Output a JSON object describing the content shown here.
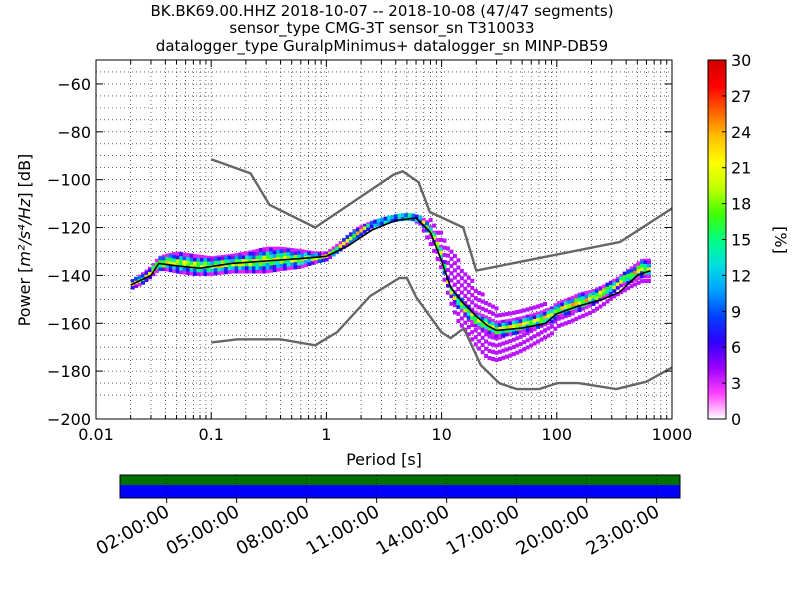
{
  "title": {
    "line1": "BK.BK69.00.HHZ   2018-10-07 -- 2018-10-08  (47/47 segments)",
    "line2": "sensor_type CMG-3T sensor_sn T310033",
    "line3": "datalogger_type GuralpMinimus+ datalogger_sn MINP-DB59"
  },
  "chart_data": [
    {
      "type": "heatmap",
      "xlabel": "Period [s]",
      "ylabel_prefix": "Power [",
      "ylabel_math": "m²/s⁴/Hz",
      "ylabel_suffix": "] [dB]",
      "x_scale": "log",
      "xlim": [
        0.01,
        1000
      ],
      "ylim": [
        -200,
        -50
      ],
      "x_ticks": [
        0.01,
        0.1,
        1,
        10,
        100,
        1000
      ],
      "x_tick_labels": [
        "0.01",
        "0.1",
        "1",
        "10",
        "100",
        "1000"
      ],
      "y_ticks": [
        -200,
        -180,
        -160,
        -140,
        -120,
        -100,
        -80,
        -60
      ],
      "y_tick_labels": [
        "−200",
        "−180",
        "−160",
        "−140",
        "−120",
        "−100",
        "−80",
        "−60"
      ],
      "grid": true,
      "colorbar": {
        "label": "[%]",
        "range": [
          0,
          30
        ],
        "ticks": [
          0,
          3,
          6,
          9,
          12,
          15,
          18,
          21,
          24,
          27,
          30
        ],
        "tick_labels": [
          "0",
          "3",
          "6",
          "9",
          "12",
          "15",
          "18",
          "21",
          "24",
          "27",
          "30"
        ],
        "colormap": [
          "#ffffff",
          "#ff40ff",
          "#9a00ff",
          "#3000ff",
          "#0040ff",
          "#00a0ff",
          "#00e0e0",
          "#00ff80",
          "#40ff00",
          "#c0ff00",
          "#ffff00",
          "#ffc000",
          "#ff6000",
          "#ff0000",
          "#d00000"
        ]
      },
      "series": [
        {
          "name": "high noise model",
          "color": "#666666",
          "x": [
            0.1,
            0.22,
            0.32,
            0.8,
            3.8,
            4.6,
            6.3,
            7.9,
            15.4,
            20,
            354.8,
            1000
          ],
          "y": [
            -91.5,
            -97.4,
            -110.5,
            -120,
            -98,
            -96.5,
            -101,
            -113.5,
            -120,
            -138,
            -126,
            -112
          ]
        },
        {
          "name": "low noise model",
          "color": "#666666",
          "x": [
            0.1,
            0.17,
            0.4,
            0.8,
            1.24,
            2.4,
            4.3,
            5,
            6,
            10,
            12,
            15.6,
            21.9,
            31.6,
            45,
            70,
            101,
            154,
            328,
            600,
            1000
          ],
          "y": [
            -168,
            -166.7,
            -166.7,
            -169.2,
            -163.7,
            -148.6,
            -141.1,
            -141.1,
            -149,
            -163.8,
            -166.2,
            -162.1,
            -177.5,
            -185,
            -187.5,
            -187.5,
            -185,
            -185,
            -187.5,
            -184.4,
            -178.5
          ]
        },
        {
          "name": "median",
          "color": "#000000",
          "x": [
            0.02,
            0.03,
            0.035,
            0.05,
            0.08,
            0.15,
            0.3,
            0.6,
            1,
            1.5,
            2.5,
            4,
            6,
            8,
            10,
            12,
            15,
            20,
            25,
            30,
            50,
            80,
            100,
            150,
            250,
            350,
            500,
            650
          ],
          "y": [
            -144,
            -140,
            -135,
            -136,
            -137,
            -135,
            -134,
            -133,
            -132,
            -128,
            -121,
            -117,
            -116,
            -122,
            -134,
            -145,
            -151,
            -157,
            -161,
            -163,
            -162,
            -160,
            -156,
            -153,
            -150,
            -147,
            -140,
            -138
          ]
        }
      ],
      "psd_band": {
        "x": [
          0.02,
          0.025,
          0.03,
          0.035,
          0.04,
          0.05,
          0.07,
          0.1,
          0.15,
          0.2,
          0.3,
          0.4,
          0.6,
          0.8,
          1,
          1.3,
          1.8,
          2.5,
          3.5,
          4.5,
          5.5,
          6.5,
          7.5,
          8.5,
          10,
          11,
          12,
          14,
          17,
          20,
          25,
          30,
          40,
          50,
          70,
          90,
          100,
          130,
          160,
          200,
          250,
          300,
          350,
          450,
          550,
          650
        ],
        "low": [
          -146,
          -144,
          -141,
          -138,
          -138,
          -139,
          -140,
          -140,
          -139,
          -139,
          -139,
          -138,
          -137,
          -135,
          -134,
          -130,
          -125,
          -120,
          -118,
          -117,
          -117,
          -118,
          -122,
          -126,
          -135,
          -143,
          -149,
          -154,
          -158,
          -162,
          -164,
          -166,
          -165,
          -164,
          -162,
          -160,
          -158,
          -156,
          -155,
          -153,
          -150,
          -148,
          -145,
          -143,
          -141,
          -141
        ],
        "high": [
          -142,
          -139,
          -136,
          -132,
          -131,
          -130,
          -131,
          -132,
          -131,
          -130,
          -128,
          -128,
          -129,
          -130,
          -130,
          -126,
          -120,
          -117,
          -115,
          -114,
          -114,
          -115,
          -117,
          -121,
          -128,
          -138,
          -144,
          -148,
          -152,
          -155,
          -157,
          -159,
          -158,
          -157,
          -155,
          -153,
          -151,
          -149,
          -147,
          -146,
          -144,
          -142,
          -140,
          -136,
          -133,
          -133
        ],
        "outlier_low": [
          -146,
          -144,
          -141,
          -138,
          -138,
          -139,
          -140,
          -140,
          -139,
          -139,
          -139,
          -138,
          -137,
          -135,
          -134,
          -130,
          -125,
          -120,
          -118,
          -117,
          -117,
          -119,
          -125,
          -130,
          -138,
          -146,
          -152,
          -160,
          -165,
          -170,
          -175,
          -176,
          -174,
          -172,
          -168,
          -165,
          -162,
          -160,
          -158,
          -156,
          -153,
          -150,
          -148,
          -145,
          -143,
          -143
        ],
        "outlier_high": [
          -142,
          -139,
          -136,
          -132,
          -131,
          -130,
          -131,
          -132,
          -131,
          -130,
          -128,
          -128,
          -129,
          -130,
          -130,
          -126,
          -120,
          -117,
          -115,
          -114,
          -114,
          -115,
          -116,
          -118,
          -122,
          -126,
          -130,
          -134,
          -140,
          -146,
          -150,
          -154,
          -156,
          -155,
          -153,
          -152,
          -151,
          -149,
          -147,
          -146,
          -144,
          -142,
          -140,
          -136,
          -133,
          -133
        ]
      }
    },
    {
      "type": "timeline",
      "time_tick_labels": [
        "02:00:00",
        "05:00:00",
        "08:00:00",
        "11:00:00",
        "14:00:00",
        "17:00:00",
        "20:00:00",
        "23:00:00"
      ],
      "time_tick_hours": [
        2,
        5,
        8,
        11,
        14,
        17,
        20,
        23
      ],
      "time_range_hours": [
        0,
        24
      ],
      "bars": [
        {
          "color": "#007000",
          "coverage": [
            0,
            24
          ]
        },
        {
          "color": "#0000ff",
          "coverage": [
            0,
            24
          ]
        }
      ]
    }
  ]
}
